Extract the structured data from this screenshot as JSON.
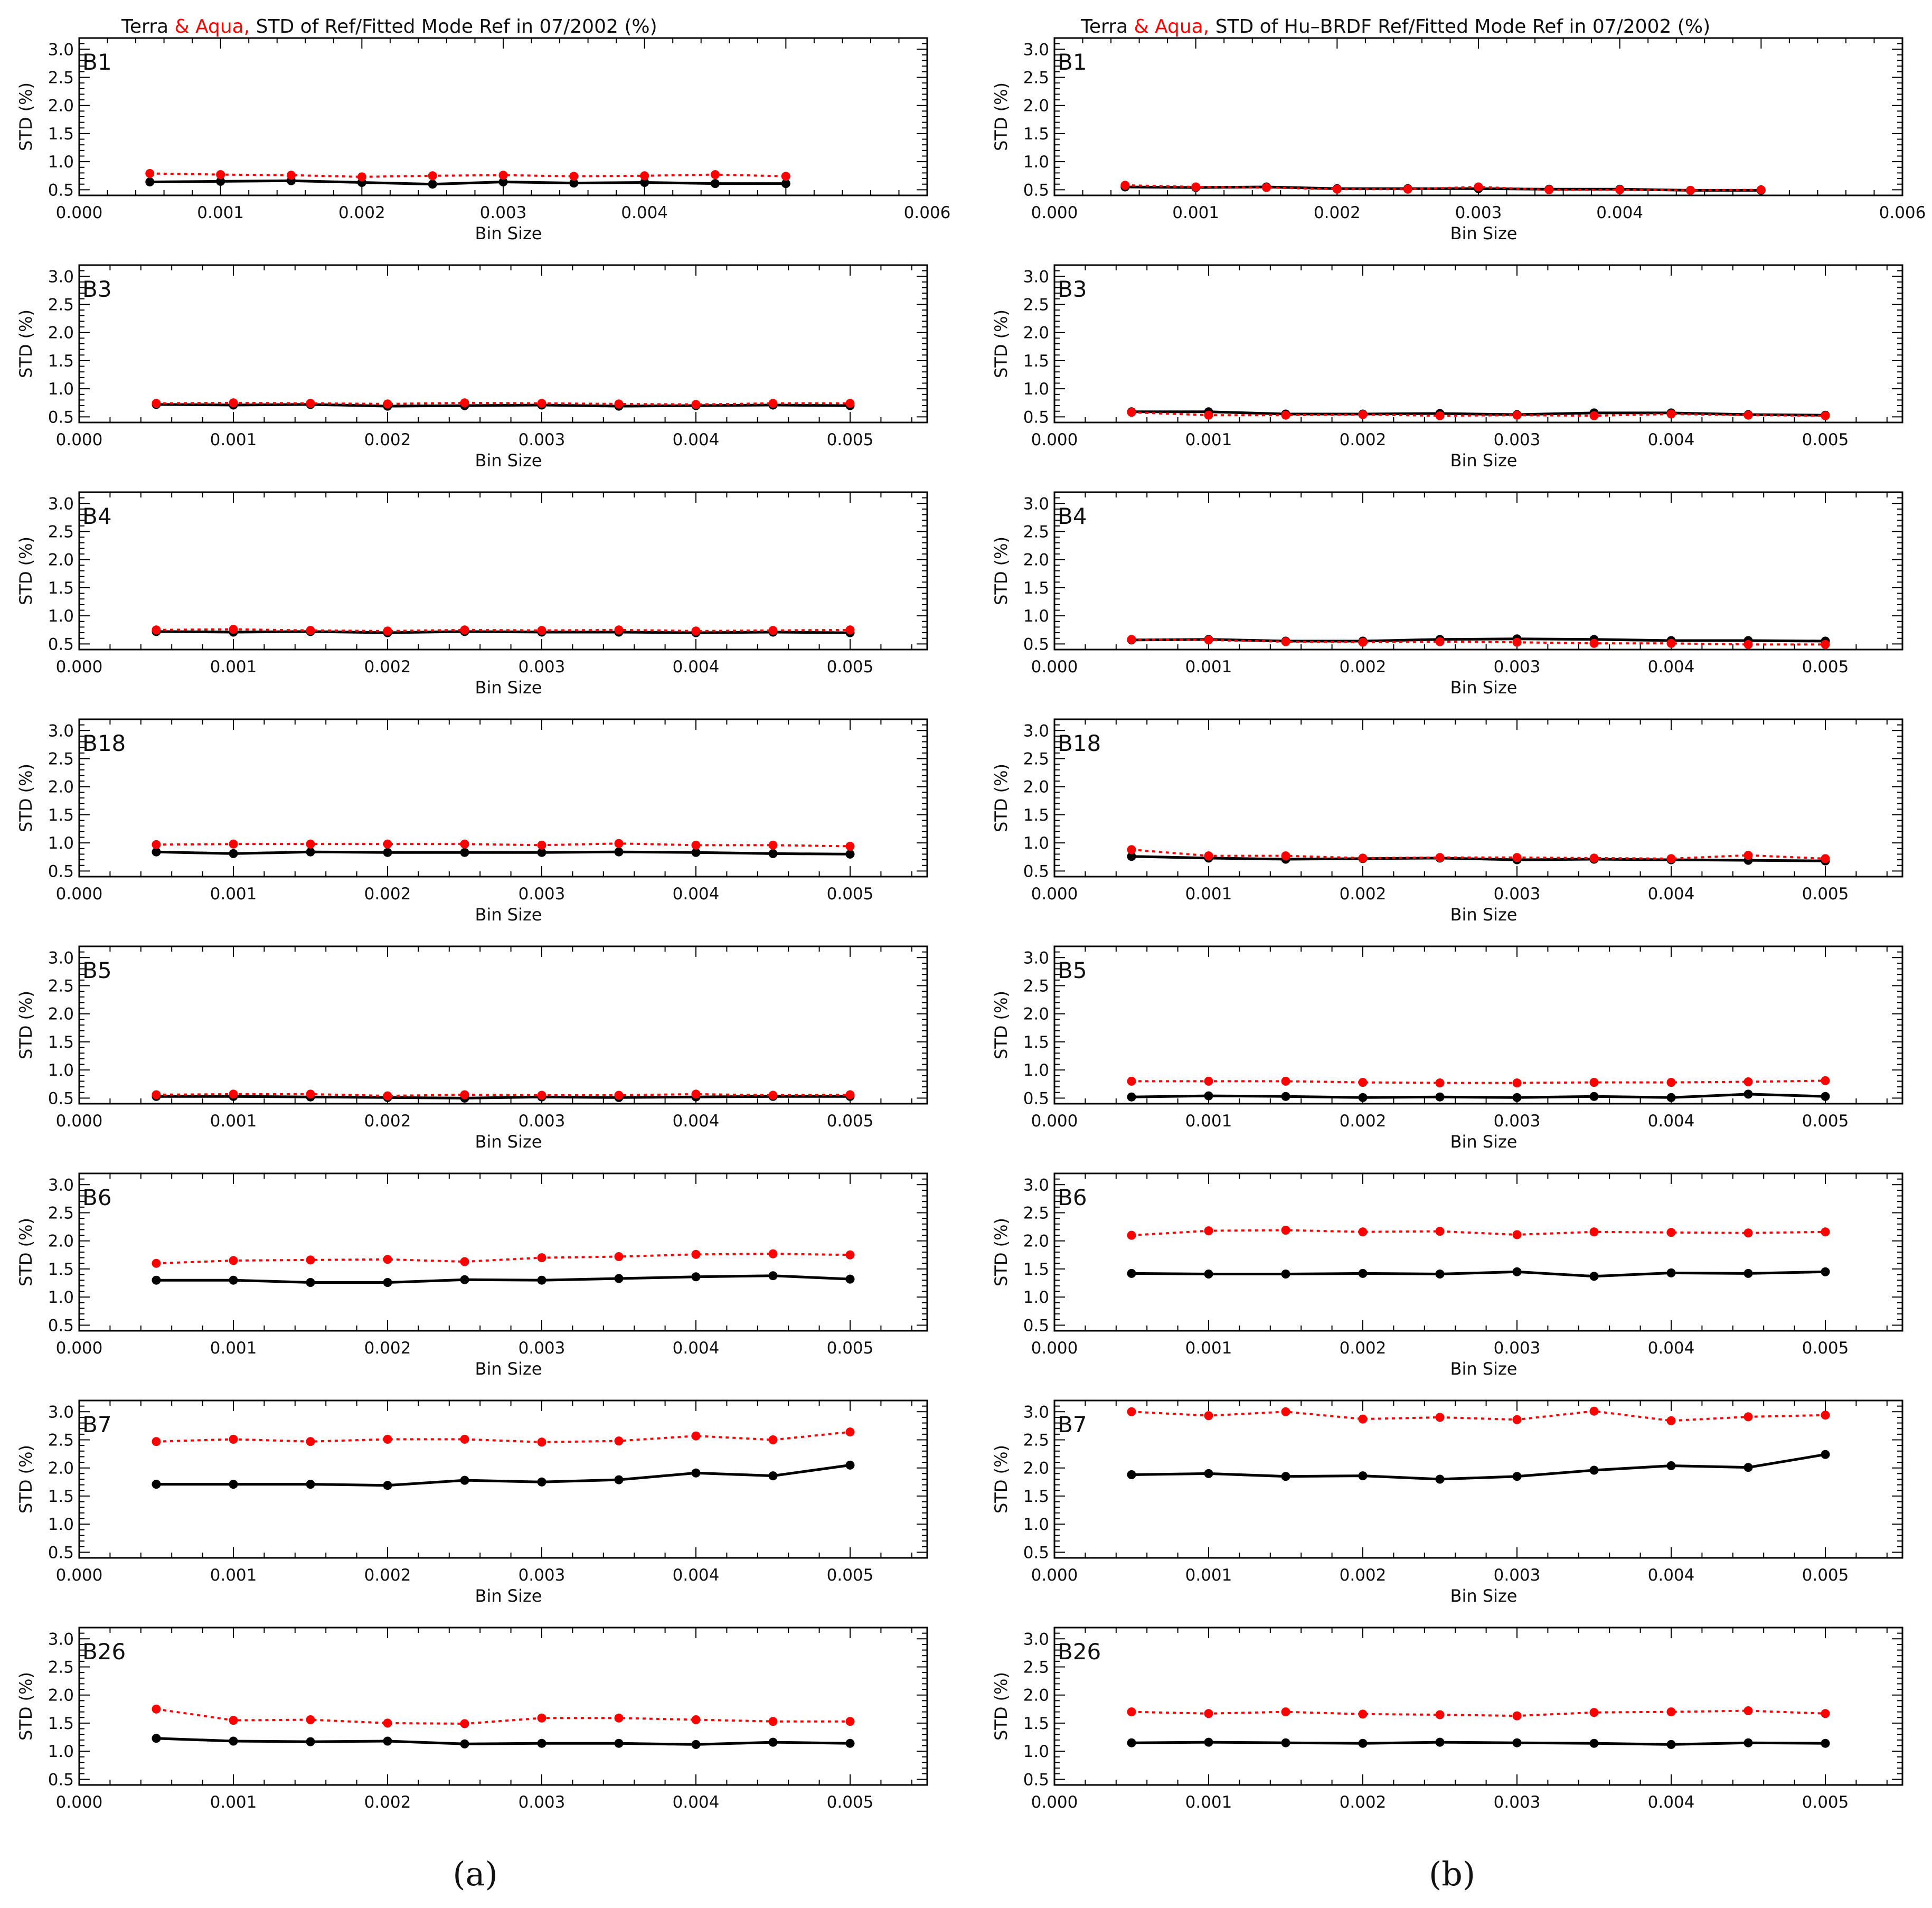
{
  "chart_data": [
    {
      "type": "line",
      "panel_label": "(a)",
      "title": {
        "prefix": "Terra",
        "highlight": " & Aqua,",
        "suffix": " STD of Ref/Fitted Mode Ref in 07/2002 (%)"
      },
      "legend": [
        {
          "name": "Terra",
          "color": "#000000",
          "style": "solid"
        },
        {
          "name": "Aqua",
          "color": "#ff0000",
          "style": "dotted"
        }
      ],
      "x": [
        0.0005,
        0.001,
        0.0015,
        0.002,
        0.0025,
        0.003,
        0.0035,
        0.004,
        0.0045,
        0.005
      ],
      "panels": [
        {
          "band": "B1",
          "xlim": [
            0,
            0.006
          ],
          "ylim": [
            0.4,
            3.2
          ],
          "xlabel": "Bin Size",
          "ylabel": "STD (%)",
          "xticks": [
            "0.000",
            "0.001",
            "0.002",
            "0.003",
            "0.004",
            "0.006"
          ],
          "series": [
            {
              "name": "Terra",
              "values": [
                0.64,
                0.65,
                0.66,
                0.63,
                0.6,
                0.64,
                0.62,
                0.63,
                0.61,
                0.61
              ]
            },
            {
              "name": "Aqua",
              "values": [
                0.79,
                0.77,
                0.76,
                0.73,
                0.75,
                0.76,
                0.74,
                0.75,
                0.77,
                0.74
              ]
            }
          ]
        },
        {
          "band": "B3",
          "xlim": [
            0,
            0.0055
          ],
          "ylim": [
            0.4,
            3.2
          ],
          "xlabel": "Bin Size",
          "ylabel": "STD (%)",
          "xticks": [
            "0.000",
            "0.001",
            "0.002",
            "0.003",
            "0.004",
            "0.005"
          ],
          "series": [
            {
              "name": "Terra",
              "values": [
                0.72,
                0.71,
                0.72,
                0.69,
                0.7,
                0.71,
                0.69,
                0.7,
                0.71,
                0.7
              ]
            },
            {
              "name": "Aqua",
              "values": [
                0.74,
                0.75,
                0.74,
                0.73,
                0.75,
                0.74,
                0.73,
                0.72,
                0.74,
                0.74
              ]
            }
          ]
        },
        {
          "band": "B4",
          "xlim": [
            0,
            0.0055
          ],
          "ylim": [
            0.4,
            3.2
          ],
          "xlabel": "Bin Size",
          "ylabel": "STD (%)",
          "xticks": [
            "0.000",
            "0.001",
            "0.002",
            "0.003",
            "0.004",
            "0.005"
          ],
          "series": [
            {
              "name": "Terra",
              "values": [
                0.72,
                0.71,
                0.72,
                0.7,
                0.72,
                0.71,
                0.71,
                0.7,
                0.71,
                0.7
              ]
            },
            {
              "name": "Aqua",
              "values": [
                0.75,
                0.76,
                0.74,
                0.73,
                0.75,
                0.74,
                0.75,
                0.73,
                0.74,
                0.75
              ]
            }
          ]
        },
        {
          "band": "B18",
          "xlim": [
            0,
            0.0055
          ],
          "ylim": [
            0.4,
            3.2
          ],
          "xlabel": "Bin Size",
          "ylabel": "STD (%)",
          "xticks": [
            "0.000",
            "0.001",
            "0.002",
            "0.003",
            "0.004",
            "0.005"
          ],
          "series": [
            {
              "name": "Terra",
              "values": [
                0.84,
                0.81,
                0.84,
                0.83,
                0.83,
                0.83,
                0.84,
                0.83,
                0.81,
                0.8
              ]
            },
            {
              "name": "Aqua",
              "values": [
                0.97,
                0.98,
                0.98,
                0.98,
                0.98,
                0.96,
                0.99,
                0.96,
                0.96,
                0.94
              ]
            }
          ]
        },
        {
          "band": "B5",
          "xlim": [
            0,
            0.0055
          ],
          "ylim": [
            0.4,
            3.2
          ],
          "xlabel": "Bin Size",
          "ylabel": "STD (%)",
          "xticks": [
            "0.000",
            "0.001",
            "0.002",
            "0.003",
            "0.004",
            "0.005"
          ],
          "series": [
            {
              "name": "Terra",
              "values": [
                0.53,
                0.53,
                0.52,
                0.51,
                0.5,
                0.52,
                0.51,
                0.52,
                0.53,
                0.53
              ]
            },
            {
              "name": "Aqua",
              "values": [
                0.56,
                0.57,
                0.57,
                0.54,
                0.56,
                0.55,
                0.55,
                0.57,
                0.55,
                0.56
              ]
            }
          ]
        },
        {
          "band": "B6",
          "xlim": [
            0,
            0.0055
          ],
          "ylim": [
            0.4,
            3.2
          ],
          "xlabel": "Bin Size",
          "ylabel": "STD (%)",
          "xticks": [
            "0.000",
            "0.001",
            "0.002",
            "0.003",
            "0.004",
            "0.005"
          ],
          "series": [
            {
              "name": "Terra",
              "values": [
                1.3,
                1.3,
                1.26,
                1.26,
                1.31,
                1.3,
                1.33,
                1.36,
                1.38,
                1.32
              ]
            },
            {
              "name": "Aqua",
              "values": [
                1.6,
                1.65,
                1.66,
                1.67,
                1.63,
                1.7,
                1.72,
                1.76,
                1.77,
                1.75
              ]
            }
          ]
        },
        {
          "band": "B7",
          "xlim": [
            0,
            0.0055
          ],
          "ylim": [
            0.4,
            3.2
          ],
          "xlabel": "Bin Size",
          "ylabel": "STD (%)",
          "xticks": [
            "0.000",
            "0.001",
            "0.002",
            "0.003",
            "0.004",
            "0.005"
          ],
          "series": [
            {
              "name": "Terra",
              "values": [
                1.71,
                1.71,
                1.71,
                1.69,
                1.78,
                1.75,
                1.79,
                1.91,
                1.86,
                2.05
              ]
            },
            {
              "name": "Aqua",
              "values": [
                2.47,
                2.51,
                2.47,
                2.51,
                2.51,
                2.46,
                2.48,
                2.57,
                2.5,
                2.64
              ]
            }
          ]
        },
        {
          "band": "B26",
          "xlim": [
            0,
            0.0055
          ],
          "ylim": [
            0.4,
            3.2
          ],
          "xlabel": "",
          "ylabel": "STD (%)",
          "xticks": [
            "0.000",
            "0.001",
            "0.002",
            "0.003",
            "0.004",
            "0.005"
          ],
          "series": [
            {
              "name": "Terra",
              "values": [
                1.23,
                1.18,
                1.17,
                1.18,
                1.13,
                1.14,
                1.14,
                1.12,
                1.16,
                1.14
              ]
            },
            {
              "name": "Aqua",
              "values": [
                1.75,
                1.55,
                1.56,
                1.5,
                1.49,
                1.59,
                1.59,
                1.56,
                1.53,
                1.53
              ]
            }
          ]
        }
      ]
    },
    {
      "type": "line",
      "panel_label": "(b)",
      "title": {
        "prefix": "Terra",
        "highlight": " & Aqua,",
        "suffix": " STD of Hu–BRDF Ref/Fitted Mode Ref in 07/2002 (%)"
      },
      "legend": [
        {
          "name": "Terra",
          "color": "#000000",
          "style": "solid"
        },
        {
          "name": "Aqua",
          "color": "#ff0000",
          "style": "dotted"
        }
      ],
      "x": [
        0.0005,
        0.001,
        0.0015,
        0.002,
        0.0025,
        0.003,
        0.0035,
        0.004,
        0.0045,
        0.005
      ],
      "panels": [
        {
          "band": "B1",
          "xlim": [
            0,
            0.006
          ],
          "ylim": [
            0.4,
            3.2
          ],
          "xlabel": "Bin Size",
          "ylabel": "STD (%)",
          "xticks": [
            "0.000",
            "0.001",
            "0.002",
            "0.003",
            "0.004",
            "0.006"
          ],
          "series": [
            {
              "name": "Terra",
              "values": [
                0.55,
                0.54,
                0.55,
                0.52,
                0.52,
                0.52,
                0.51,
                0.51,
                0.49,
                0.49
              ]
            },
            {
              "name": "Aqua",
              "values": [
                0.58,
                0.55,
                0.54,
                0.51,
                0.51,
                0.55,
                0.5,
                0.5,
                0.49,
                0.5
              ]
            }
          ]
        },
        {
          "band": "B3",
          "xlim": [
            0,
            0.0055
          ],
          "ylim": [
            0.4,
            3.2
          ],
          "xlabel": "Bin Size",
          "ylabel": "STD (%)",
          "xticks": [
            "0.000",
            "0.001",
            "0.002",
            "0.003",
            "0.004",
            "0.005"
          ],
          "series": [
            {
              "name": "Terra",
              "values": [
                0.59,
                0.59,
                0.55,
                0.55,
                0.56,
                0.54,
                0.57,
                0.57,
                0.54,
                0.53
              ]
            },
            {
              "name": "Aqua",
              "values": [
                0.58,
                0.53,
                0.53,
                0.54,
                0.52,
                0.53,
                0.52,
                0.55,
                0.53,
                0.52
              ]
            }
          ]
        },
        {
          "band": "B4",
          "xlim": [
            0,
            0.0055
          ],
          "ylim": [
            0.4,
            3.2
          ],
          "xlabel": "Bin Size",
          "ylabel": "STD (%)",
          "xticks": [
            "0.000",
            "0.001",
            "0.002",
            "0.003",
            "0.004",
            "0.005"
          ],
          "series": [
            {
              "name": "Terra",
              "values": [
                0.57,
                0.58,
                0.55,
                0.55,
                0.58,
                0.59,
                0.58,
                0.56,
                0.56,
                0.55
              ]
            },
            {
              "name": "Aqua",
              "values": [
                0.58,
                0.57,
                0.54,
                0.53,
                0.54,
                0.53,
                0.51,
                0.51,
                0.49,
                0.49
              ]
            }
          ]
        },
        {
          "band": "B18",
          "xlim": [
            0,
            0.0055
          ],
          "ylim": [
            0.4,
            3.2
          ],
          "xlabel": "Bin Size",
          "ylabel": "STD (%)",
          "xticks": [
            "0.000",
            "0.001",
            "0.002",
            "0.003",
            "0.004",
            "0.005"
          ],
          "series": [
            {
              "name": "Terra",
              "values": [
                0.76,
                0.73,
                0.71,
                0.72,
                0.73,
                0.7,
                0.71,
                0.7,
                0.69,
                0.68
              ]
            },
            {
              "name": "Aqua",
              "values": [
                0.88,
                0.77,
                0.77,
                0.73,
                0.74,
                0.74,
                0.73,
                0.72,
                0.78,
                0.72
              ]
            }
          ]
        },
        {
          "band": "B5",
          "xlim": [
            0,
            0.0055
          ],
          "ylim": [
            0.4,
            3.2
          ],
          "xlabel": "Bin Size",
          "ylabel": "STD (%)",
          "xticks": [
            "0.000",
            "0.001",
            "0.002",
            "0.003",
            "0.004",
            "0.005"
          ],
          "series": [
            {
              "name": "Terra",
              "values": [
                0.52,
                0.54,
                0.53,
                0.51,
                0.52,
                0.51,
                0.53,
                0.51,
                0.57,
                0.53
              ]
            },
            {
              "name": "Aqua",
              "values": [
                0.8,
                0.8,
                0.8,
                0.78,
                0.77,
                0.77,
                0.78,
                0.78,
                0.79,
                0.81
              ]
            }
          ]
        },
        {
          "band": "B6",
          "xlim": [
            0,
            0.0055
          ],
          "ylim": [
            0.4,
            3.2
          ],
          "xlabel": "Bin Size",
          "ylabel": "STD (%)",
          "xticks": [
            "0.000",
            "0.001",
            "0.002",
            "0.003",
            "0.004",
            "0.005"
          ],
          "series": [
            {
              "name": "Terra",
              "values": [
                1.42,
                1.41,
                1.41,
                1.42,
                1.41,
                1.45,
                1.37,
                1.43,
                1.42,
                1.45
              ]
            },
            {
              "name": "Aqua",
              "values": [
                2.1,
                2.18,
                2.19,
                2.16,
                2.17,
                2.11,
                2.16,
                2.15,
                2.14,
                2.16
              ]
            }
          ]
        },
        {
          "band": "B7",
          "xlim": [
            0,
            0.0055
          ],
          "ylim": [
            0.4,
            3.2
          ],
          "xlabel": "Bin Size",
          "ylabel": "STD (%)",
          "xticks": [
            "0.000",
            "0.001",
            "0.002",
            "0.003",
            "0.004",
            "0.005"
          ],
          "series": [
            {
              "name": "Terra",
              "values": [
                1.88,
                1.9,
                1.85,
                1.86,
                1.8,
                1.85,
                1.96,
                2.04,
                2.01,
                2.24
              ]
            },
            {
              "name": "Aqua",
              "values": [
                3.0,
                2.93,
                3.0,
                2.87,
                2.9,
                2.86,
                3.01,
                2.84,
                2.91,
                2.94
              ]
            }
          ]
        },
        {
          "band": "B26",
          "xlim": [
            0,
            0.0055
          ],
          "ylim": [
            0.4,
            3.2
          ],
          "xlabel": "",
          "ylabel": "STD (%)",
          "xticks": [
            "0.000",
            "0.001",
            "0.002",
            "0.003",
            "0.004",
            "0.005"
          ],
          "series": [
            {
              "name": "Terra",
              "values": [
                1.15,
                1.16,
                1.15,
                1.14,
                1.16,
                1.15,
                1.14,
                1.12,
                1.15,
                1.14
              ]
            },
            {
              "name": "Aqua",
              "values": [
                1.7,
                1.67,
                1.7,
                1.66,
                1.65,
                1.63,
                1.69,
                1.7,
                1.72,
                1.67
              ]
            }
          ]
        }
      ]
    }
  ]
}
